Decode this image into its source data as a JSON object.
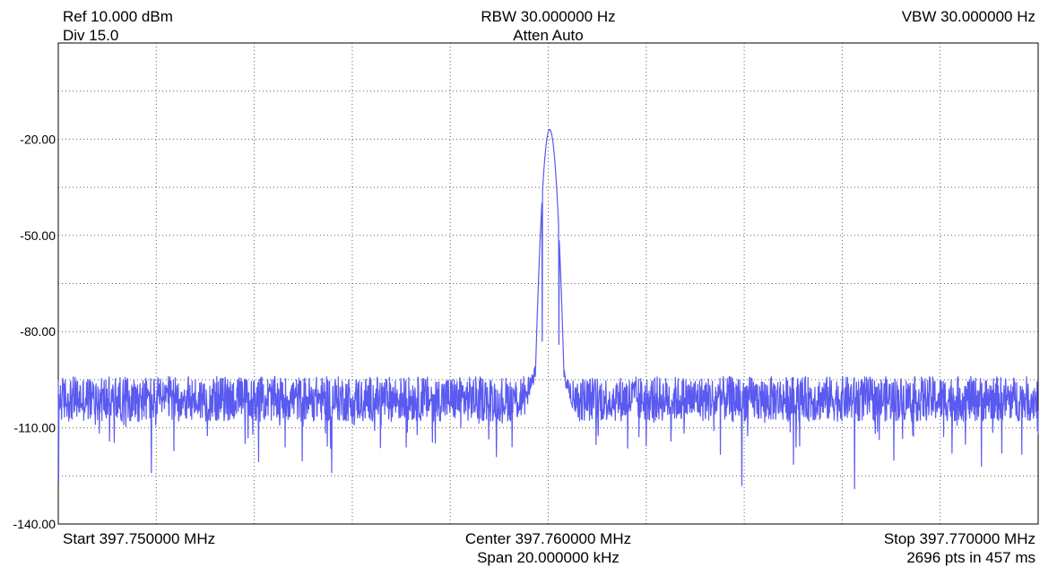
{
  "header": {
    "ref": "Ref 10.000 dBm",
    "div": "Div 15.0",
    "rbw": "RBW 30.000000 Hz",
    "atten": "Atten Auto",
    "vbw": "VBW 30.000000 Hz"
  },
  "footer": {
    "start": "Start 397.750000 MHz",
    "center": "Center 397.760000 MHz",
    "span": "Span 20.000000 kHz",
    "stop": "Stop 397.770000 MHz",
    "points": "2696 pts in 457 ms"
  },
  "colors": {
    "trace": "#5a5af0",
    "grid": "#606060",
    "frame": "#000000"
  },
  "chart_data": {
    "type": "line",
    "title": "",
    "xlabel": "",
    "ylabel": "",
    "x_unit": "MHz",
    "y_unit": "dBm",
    "xlim": [
      397.75,
      397.77
    ],
    "ylim": [
      -140,
      10
    ],
    "x_divisions": 10,
    "y_divisions": 10,
    "grid": true,
    "ytick_labels": [
      {
        "value": -20,
        "label": "-20.00"
      },
      {
        "value": -50,
        "label": "-50.00"
      },
      {
        "value": -80,
        "label": "-80.00"
      },
      {
        "value": -110,
        "label": "-110.00"
      },
      {
        "value": -140,
        "label": "-140.00"
      }
    ],
    "series": [
      {
        "points_count": 2696,
        "noise_floor_dbm": -101,
        "peak": {
          "x": 397.76003,
          "y": -17
        },
        "notable_points": [
          {
            "x": 397.75001,
            "y": -127
          },
          {
            "x": 397.7519,
            "y": -124
          },
          {
            "x": 397.75558,
            "y": -124
          },
          {
            "x": 397.7571,
            "y": -116
          },
          {
            "x": 397.75894,
            "y": -119
          },
          {
            "x": 397.75988,
            "y": -83
          },
          {
            "x": 397.76003,
            "y": -17
          },
          {
            "x": 397.76022,
            "y": -84
          },
          {
            "x": 397.76395,
            "y": -128
          },
          {
            "x": 397.76625,
            "y": -129
          },
          {
            "x": 397.76884,
            "y": -122
          },
          {
            "x": 397.77,
            "y": -112
          }
        ]
      }
    ]
  }
}
